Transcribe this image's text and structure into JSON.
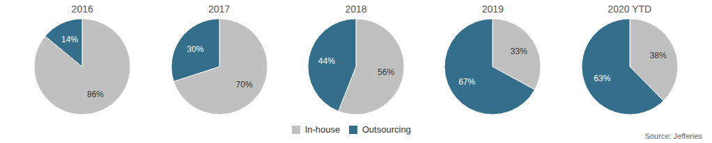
{
  "chart_data": [
    {
      "type": "pie",
      "title": "2016",
      "categories": [
        "In-house",
        "Outsourcing"
      ],
      "values": [
        86,
        14
      ],
      "value_labels": [
        "86%",
        "14%"
      ],
      "colors": [
        "#c0c0c0",
        "#336f8a"
      ],
      "data_labels": true,
      "legend": "bottom"
    },
    {
      "type": "pie",
      "title": "2017",
      "categories": [
        "In-house",
        "Outsourcing"
      ],
      "values": [
        70,
        30
      ],
      "value_labels": [
        "70%",
        "30%"
      ],
      "colors": [
        "#c0c0c0",
        "#336f8a"
      ],
      "data_labels": true,
      "legend": "bottom"
    },
    {
      "type": "pie",
      "title": "2018",
      "categories": [
        "In-house",
        "Outsourcing"
      ],
      "values": [
        56,
        44
      ],
      "value_labels": [
        "56%",
        "44%"
      ],
      "colors": [
        "#c0c0c0",
        "#336f8a"
      ],
      "data_labels": true,
      "legend": "bottom"
    },
    {
      "type": "pie",
      "title": "2019",
      "categories": [
        "In-house",
        "Outsourcing"
      ],
      "values": [
        33,
        67
      ],
      "value_labels": [
        "33%",
        "67%"
      ],
      "colors": [
        "#c0c0c0",
        "#336f8a"
      ],
      "data_labels": true,
      "legend": "bottom"
    },
    {
      "type": "pie",
      "title": "2020 YTD",
      "categories": [
        "In-house",
        "Outsourcing"
      ],
      "values": [
        38,
        63
      ],
      "value_labels": [
        "38%",
        "63%"
      ],
      "colors": [
        "#c0c0c0",
        "#336f8a"
      ],
      "data_labels": true,
      "legend": "bottom",
      "annotations": [
        "Source: Jefferies"
      ]
    }
  ]
}
